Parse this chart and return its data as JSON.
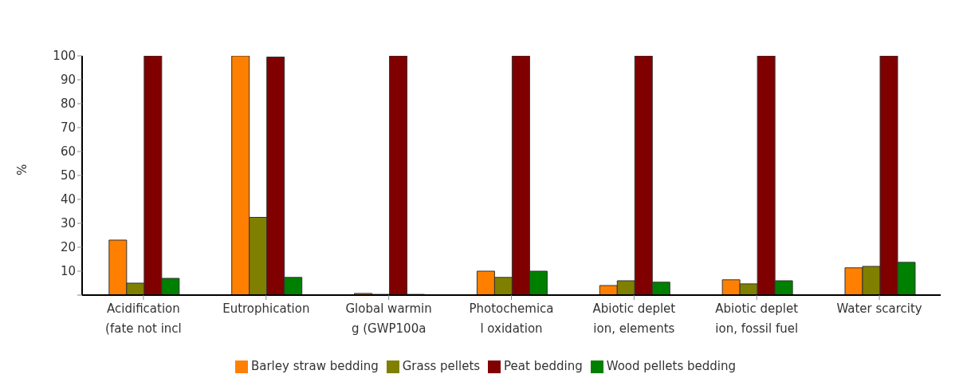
{
  "chart_data": {
    "type": "bar",
    "ylabel": "%",
    "categories": [
      "Acidification\n(fate not incl",
      "Eutrophication",
      "Global warmin\ng (GWP100a",
      "Photochemica\nl oxidation",
      "Abiotic deplet\nion, elements",
      "Abiotic deplet\nion, fossil fuel",
      "Water scarcity"
    ],
    "series": [
      {
        "name": "Barley straw bedding",
        "color": "#ff8000",
        "values": [
          23,
          100,
          0.7,
          10,
          4,
          6.4,
          11.4
        ]
      },
      {
        "name": "Grass pellets",
        "color": "#808000",
        "values": [
          5,
          32.5,
          0.3,
          7.4,
          6,
          4.7,
          12
        ]
      },
      {
        "name": "Peat bedding",
        "color": "#800000",
        "values": [
          100,
          99.5,
          100,
          100,
          100,
          100,
          100
        ]
      },
      {
        "name": "Wood pellets bedding",
        "color": "#008000",
        "values": [
          7,
          7.4,
          0.3,
          10,
          5.4,
          6,
          13.7
        ]
      }
    ],
    "ylim": [
      0,
      100
    ],
    "yticks": [
      {
        "value": 0,
        "label": null
      },
      10,
      20,
      30,
      40,
      50,
      60,
      70,
      80,
      90,
      100
    ],
    "grid": false,
    "legend": "bottom"
  }
}
